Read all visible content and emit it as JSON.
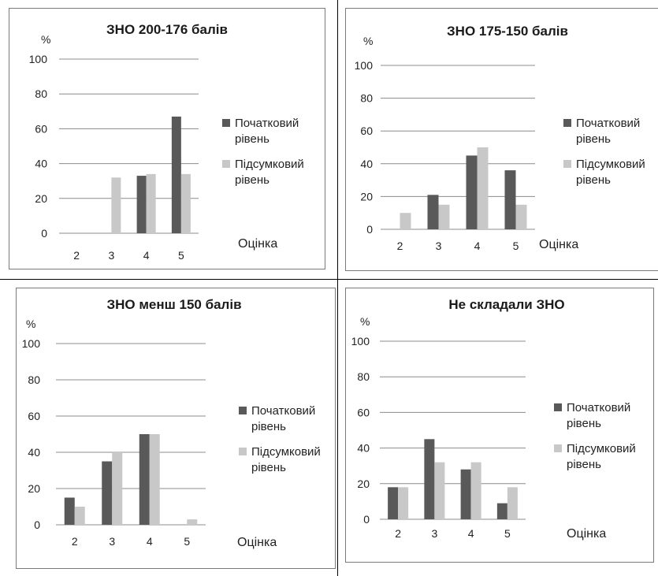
{
  "colors": {
    "initial": "#595959",
    "final": "#c8c8c8",
    "grid": "#8c8c8c"
  },
  "chart_data": [
    {
      "type": "bar",
      "title": "ЗНО 200-176 балів",
      "ylabel": "%",
      "xlabel": "Оцінка",
      "ylim": [
        0,
        100
      ],
      "yticks": [
        0,
        20,
        40,
        60,
        80,
        100
      ],
      "categories": [
        "2",
        "3",
        "4",
        "5"
      ],
      "series": [
        {
          "name": "Початковий рівень",
          "values": [
            0,
            0,
            33,
            67
          ]
        },
        {
          "name": "Підсумковий рівень",
          "values": [
            0,
            32,
            34,
            34
          ]
        }
      ]
    },
    {
      "type": "bar",
      "title": "ЗНО 175-150 балів",
      "ylabel": "%",
      "xlabel": "Оцінка",
      "ylim": [
        0,
        100
      ],
      "yticks": [
        0,
        20,
        40,
        60,
        80,
        100
      ],
      "categories": [
        "2",
        "3",
        "4",
        "5"
      ],
      "series": [
        {
          "name": "Початковий рівень",
          "values": [
            0,
            21,
            45,
            36
          ]
        },
        {
          "name": "Підсумковий рівень",
          "values": [
            10,
            15,
            50,
            15
          ]
        }
      ]
    },
    {
      "type": "bar",
      "title": "ЗНО менш 150 балів",
      "ylabel": "%",
      "xlabel": "Оцінка",
      "ylim": [
        0,
        100
      ],
      "yticks": [
        0,
        20,
        40,
        60,
        80,
        100
      ],
      "categories": [
        "2",
        "3",
        "4",
        "5"
      ],
      "series": [
        {
          "name": "Початковий рівень",
          "values": [
            15,
            35,
            50,
            0
          ]
        },
        {
          "name": "Підсумковий рівень",
          "values": [
            10,
            40,
            50,
            3
          ]
        }
      ]
    },
    {
      "type": "bar",
      "title": "Не складали ЗНО",
      "ylabel": "%",
      "xlabel": "Оцінка",
      "ylim": [
        0,
        100
      ],
      "yticks": [
        0,
        20,
        40,
        60,
        80,
        100
      ],
      "categories": [
        "2",
        "3",
        "4",
        "5"
      ],
      "series": [
        {
          "name": "Початковий рівень",
          "values": [
            18,
            45,
            28,
            9
          ]
        },
        {
          "name": "Підсумковий рівень",
          "values": [
            18,
            32,
            32,
            18
          ]
        }
      ]
    }
  ]
}
